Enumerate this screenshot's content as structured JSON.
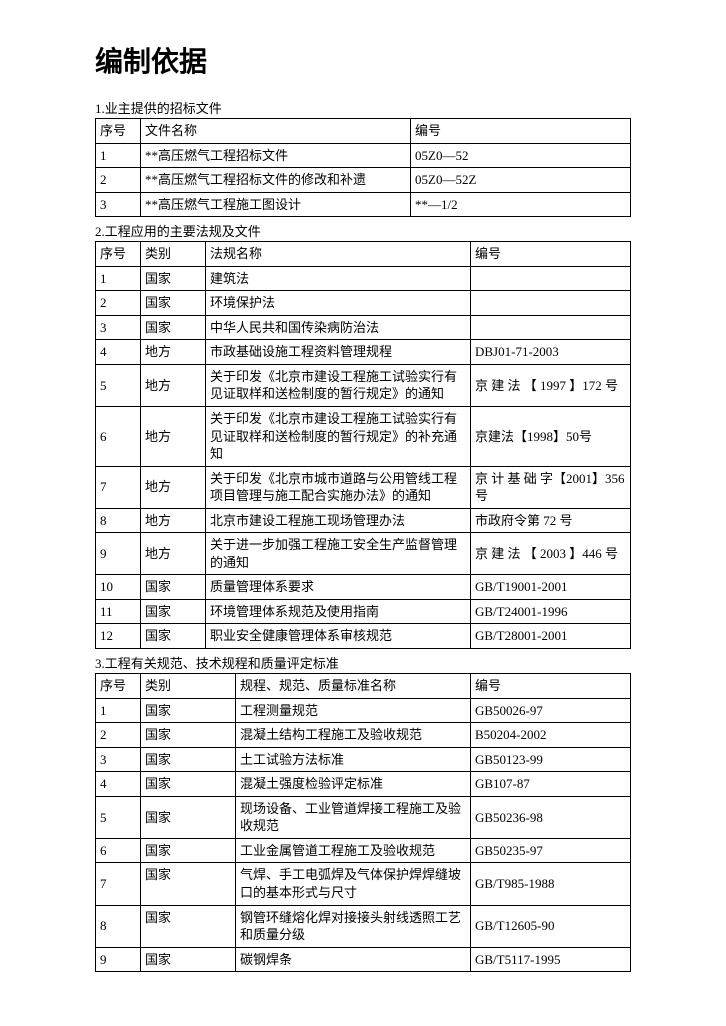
{
  "title": "编制依据",
  "section1": {
    "label": "1.业主提供的招标文件",
    "headers": [
      "序号",
      "文件名称",
      "编号"
    ],
    "rows": [
      [
        "1",
        "**高压燃气工程招标文件",
        "05Z0—52"
      ],
      [
        "2",
        "**高压燃气工程招标文件的修改和补遗",
        "05Z0—52Z"
      ],
      [
        "3",
        "**高压燃气工程施工图设计",
        "**—1/2"
      ]
    ]
  },
  "section2": {
    "label": "2.工程应用的主要法规及文件",
    "headers": [
      "序号",
      "类别",
      "法规名称",
      "编号"
    ],
    "rows": [
      {
        "c1": "1",
        "c2": "国家",
        "c3": "建筑法",
        "c4": ""
      },
      {
        "c1": "2",
        "c2": "国家",
        "c3": "环境保护法",
        "c4": ""
      },
      {
        "c1": "3",
        "c2": "国家",
        "c3": "中华人民共和国传染病防治法",
        "c4": ""
      },
      {
        "c1": "4",
        "c2": "地方",
        "c3": "市政基础设施工程资料管理规程",
        "c4": "DBJ01-71-2003"
      },
      {
        "c1": "5",
        "c2": "地方",
        "c3": "关于印发《北京市建设工程施工试验实行有见证取样和送检制度的暂行规定》的通知",
        "c4": "京 建 法 【 1997 】172 号"
      },
      {
        "c1": "6",
        "c2": "地方",
        "c3": "关于印发《北京市建设工程施工试验实行有见证取样和送检制度的暂行规定》的补充通知",
        "c4": "京建法【1998】50号"
      },
      {
        "c1": "7",
        "c2": "地方",
        "c3": "关于印发《北京市城市道路与公用管线工程项目管理与施工配合实施办法》的通知",
        "c4": "京 计 基 础 字【2001】356 号"
      },
      {
        "c1": "8",
        "c2": "地方",
        "c3": "北京市建设工程施工现场管理办法",
        "c4": "市政府令第 72 号"
      },
      {
        "c1": "9",
        "c2": "地方",
        "c3": "关于进一步加强工程施工安全生产监督管理的通知",
        "c4": "京 建 法 【 2003 】446 号"
      },
      {
        "c1": "10",
        "c2": "国家",
        "c3": "质量管理体系要求",
        "c4": "GB/T19001-2001"
      },
      {
        "c1": "11",
        "c2": "国家",
        "c3": "环境管理体系规范及使用指南",
        "c4": "GB/T24001-1996"
      },
      {
        "c1": "12",
        "c2": "国家",
        "c3": "职业安全健康管理体系审核规范",
        "c4": "GB/T28001-2001"
      }
    ]
  },
  "section3": {
    "label": "3.工程有关规范、技术规程和质量评定标准",
    "headers": [
      "序号",
      "类别",
      "规程、规范、质量标准名称",
      "编号"
    ],
    "rows": [
      {
        "c1": "1",
        "c2": "国家",
        "c3": "工程测量规范",
        "c4": "GB50026-97"
      },
      {
        "c1": "2",
        "c2": "国家",
        "c3": "混凝土结构工程施工及验收规范",
        "c4": "B50204-2002"
      },
      {
        "c1": "3",
        "c2": "国家",
        "c3": "土工试验方法标准",
        "c4": "GB50123-99"
      },
      {
        "c1": "4",
        "c2": "国家",
        "c3": "混凝土强度检验评定标准",
        "c4": "GB107-87"
      },
      {
        "c1": "5",
        "c2": "国家",
        "c3": "现场设备、工业管道焊接工程施工及验收规范",
        "c4": "GB50236-98"
      },
      {
        "c1": "6",
        "c2": "国家",
        "c3": "工业金属管道工程施工及验收规范",
        "c4": "GB50235-97"
      },
      {
        "c1": "7",
        "c2": "国家",
        "c3": "气焊、手工电弧焊及气体保护焊焊缝坡口的基本形式与尺寸",
        "c4": "GB/T985-1988"
      },
      {
        "c1": "8",
        "c2": "国家",
        "c3": "钢管环缝熔化焊对接接头射线透照工艺和质量分级",
        "c4": "GB/T12605-90"
      },
      {
        "c1": "9",
        "c2": "国家",
        "c3": "碳钢焊条",
        "c4": "GB/T5117-1995"
      }
    ]
  }
}
